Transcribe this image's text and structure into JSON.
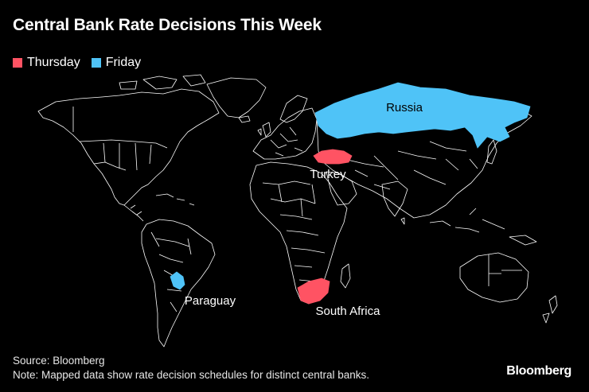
{
  "title": "Central Bank Rate Decisions This Week",
  "legend": {
    "items": [
      {
        "label": "Thursday",
        "color": "#ff5363"
      },
      {
        "label": "Friday",
        "color": "#4fc3f7"
      }
    ]
  },
  "map": {
    "base_fill": "#000000",
    "border_color": "#ffffff",
    "countries": [
      {
        "name": "Russia",
        "day": "Friday",
        "color": "#4fc3f7"
      },
      {
        "name": "Turkey",
        "day": "Thursday",
        "color": "#ff5363"
      },
      {
        "name": "Paraguay",
        "day": "Friday",
        "color": "#4fc3f7"
      },
      {
        "name": "South Africa",
        "day": "Thursday",
        "color": "#ff5363"
      }
    ]
  },
  "footer": {
    "source": "Source: Bloomberg",
    "note": "Note: Mapped data show rate decision schedules for distinct central banks."
  },
  "brand": "Bloomberg"
}
